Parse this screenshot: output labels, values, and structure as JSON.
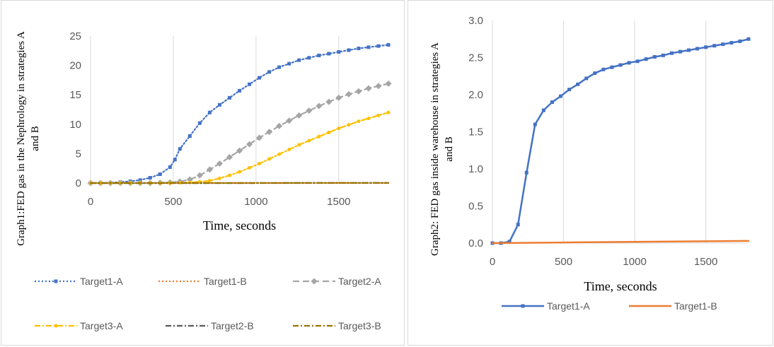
{
  "chart_data": [
    {
      "type": "line",
      "xlabel": "Time, seconds",
      "ylabel_lines": [
        "Graph1:FED gas in the  Nephrology in strategies A",
        "and B"
      ],
      "xlim": [
        0,
        1800
      ],
      "ylim": [
        0,
        25
      ],
      "x_ticks": [
        0,
        500,
        1000,
        1500
      ],
      "y_ticks": [
        0,
        5,
        10,
        15,
        20,
        25
      ],
      "grid": "vertical",
      "legend_position": "bottom",
      "series": [
        {
          "name": "Target1-A",
          "color": "#4472c4",
          "dash": "dotted",
          "marker": "square",
          "x": [
            0,
            60,
            120,
            180,
            240,
            300,
            360,
            420,
            480,
            510,
            540,
            600,
            660,
            720,
            780,
            840,
            900,
            960,
            1020,
            1080,
            1140,
            1200,
            1260,
            1320,
            1380,
            1440,
            1500,
            1560,
            1620,
            1680,
            1740,
            1800
          ],
          "y": [
            0,
            0,
            0.05,
            0.15,
            0.3,
            0.5,
            0.9,
            1.5,
            2.7,
            4,
            5.8,
            8,
            10.2,
            12,
            13.3,
            14.5,
            15.7,
            16.8,
            17.9,
            18.9,
            19.7,
            20.3,
            20.9,
            21.3,
            21.7,
            22,
            22.3,
            22.6,
            22.9,
            23.1,
            23.3,
            23.5
          ]
        },
        {
          "name": "Target1-B",
          "color": "#ed7d31",
          "dash": "dotted",
          "marker": "none",
          "x": [
            0,
            300,
            600,
            900,
            1200,
            1500,
            1800
          ],
          "y": [
            0,
            0,
            0,
            0.01,
            0.01,
            0.02,
            0.02
          ]
        },
        {
          "name": "Target2-A",
          "color": "#a5a5a5",
          "dash": "dashed",
          "marker": "diamond",
          "x": [
            0,
            60,
            120,
            180,
            240,
            300,
            360,
            420,
            480,
            540,
            600,
            660,
            720,
            780,
            840,
            900,
            960,
            1020,
            1080,
            1140,
            1200,
            1260,
            1320,
            1380,
            1440,
            1500,
            1560,
            1620,
            1680,
            1740,
            1800
          ],
          "y": [
            0,
            0,
            0,
            0,
            0,
            0,
            0,
            0.05,
            0.1,
            0.25,
            0.6,
            1.3,
            2.3,
            3.3,
            4.4,
            5.5,
            6.6,
            7.7,
            8.7,
            9.7,
            10.6,
            11.5,
            12.3,
            13.1,
            13.8,
            14.5,
            15.1,
            15.6,
            16.1,
            16.5,
            16.9
          ]
        },
        {
          "name": "Target3-A",
          "color": "#ffc000",
          "dash": "dashdot",
          "marker": "circle",
          "x": [
            0,
            60,
            120,
            180,
            240,
            300,
            360,
            420,
            480,
            540,
            600,
            660,
            720,
            780,
            840,
            900,
            960,
            1020,
            1080,
            1140,
            1200,
            1260,
            1320,
            1380,
            1440,
            1500,
            1560,
            1620,
            1680,
            1740,
            1800
          ],
          "y": [
            0,
            0,
            0,
            0,
            0,
            0,
            0,
            0,
            0,
            0.05,
            0.1,
            0.2,
            0.4,
            0.8,
            1.3,
            1.9,
            2.6,
            3.3,
            4.1,
            4.9,
            5.7,
            6.5,
            7.2,
            7.9,
            8.6,
            9.3,
            9.9,
            10.5,
            11,
            11.5,
            12
          ]
        },
        {
          "name": "Target2-B",
          "color": "#595959",
          "dash": "dashdot",
          "marker": "none",
          "x": [
            0,
            300,
            600,
            900,
            1200,
            1500,
            1800
          ],
          "y": [
            0,
            0,
            0,
            0,
            0.01,
            0.01,
            0.01
          ]
        },
        {
          "name": "Target3-B",
          "color": "#997300",
          "dash": "dashdot",
          "marker": "none",
          "x": [
            0,
            300,
            600,
            900,
            1200,
            1500,
            1800
          ],
          "y": [
            0,
            0,
            0,
            0,
            0,
            0.01,
            0.01
          ]
        }
      ]
    },
    {
      "type": "line",
      "xlabel": "Time, seconds",
      "ylabel_lines": [
        "Graph2: FED gas inside warehouse  in strategies A",
        "and B"
      ],
      "xlim": [
        0,
        1800
      ],
      "ylim": [
        0,
        3
      ],
      "x_ticks": [
        0,
        500,
        1000,
        1500
      ],
      "y_ticks": [
        0,
        0.5,
        1,
        1.5,
        2,
        2.5,
        3
      ],
      "y_tick_labels": [
        "0.0",
        "0.5",
        "1.0",
        "1.5",
        "2.0",
        "2.5",
        "3.0"
      ],
      "grid": "vertical",
      "legend_position": "bottom",
      "series": [
        {
          "name": "Target1-A",
          "color": "#4472c4",
          "dash": "solid",
          "marker": "square",
          "x": [
            0,
            60,
            120,
            180,
            240,
            300,
            360,
            420,
            480,
            540,
            600,
            660,
            720,
            780,
            840,
            900,
            960,
            1020,
            1080,
            1140,
            1200,
            1260,
            1320,
            1380,
            1440,
            1500,
            1560,
            1620,
            1680,
            1740,
            1800
          ],
          "y": [
            0,
            0,
            0.02,
            0.25,
            0.95,
            1.6,
            1.79,
            1.9,
            1.98,
            2.07,
            2.14,
            2.22,
            2.29,
            2.34,
            2.37,
            2.4,
            2.43,
            2.45,
            2.48,
            2.51,
            2.53,
            2.56,
            2.58,
            2.6,
            2.62,
            2.64,
            2.66,
            2.68,
            2.7,
            2.72,
            2.75
          ]
        },
        {
          "name": "Target1-B",
          "color": "#ed7d31",
          "dash": "solid",
          "marker": "none",
          "x": [
            0,
            300,
            600,
            900,
            1200,
            1500,
            1800
          ],
          "y": [
            0,
            0.005,
            0.01,
            0.015,
            0.02,
            0.025,
            0.03
          ]
        }
      ]
    }
  ]
}
